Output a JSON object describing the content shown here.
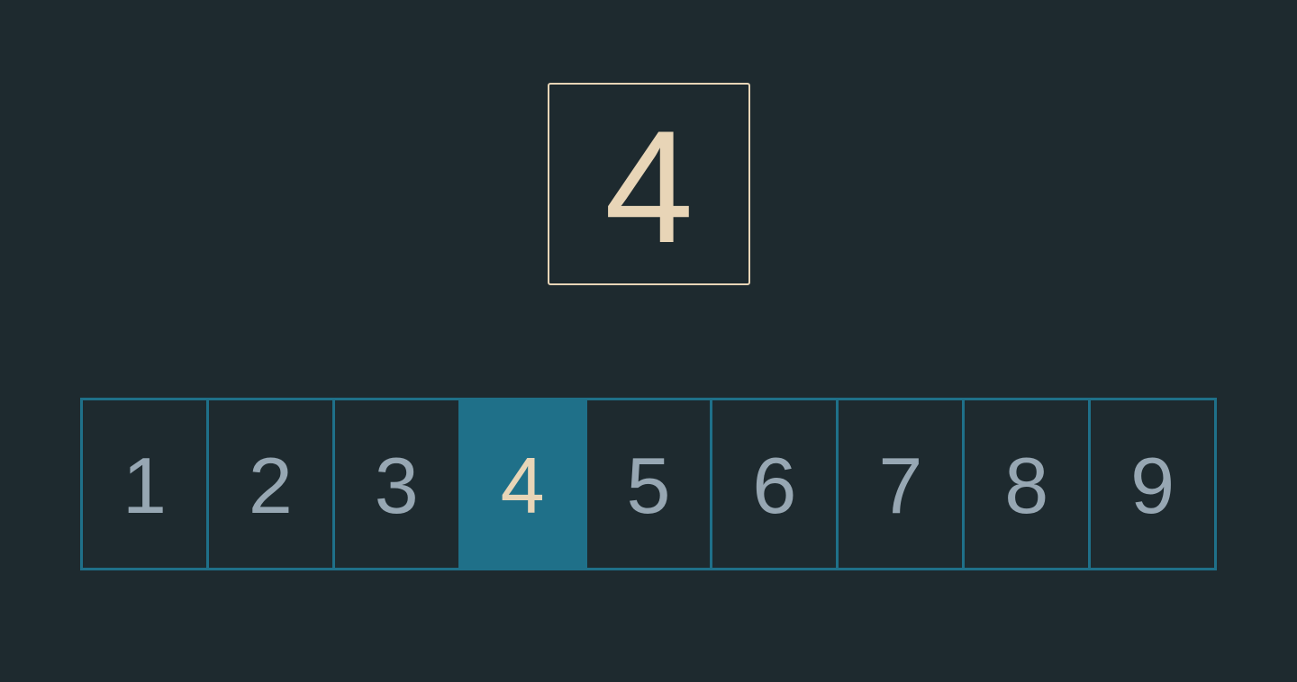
{
  "display": {
    "value": "4"
  },
  "selector": {
    "selected_index": 3,
    "options": [
      "1",
      "2",
      "3",
      "4",
      "5",
      "6",
      "7",
      "8",
      "9"
    ]
  },
  "colors": {
    "background": "#1e2a2f",
    "accent": "#1f7089",
    "display_text": "#e8d5b7",
    "option_text": "#97a7b3"
  }
}
